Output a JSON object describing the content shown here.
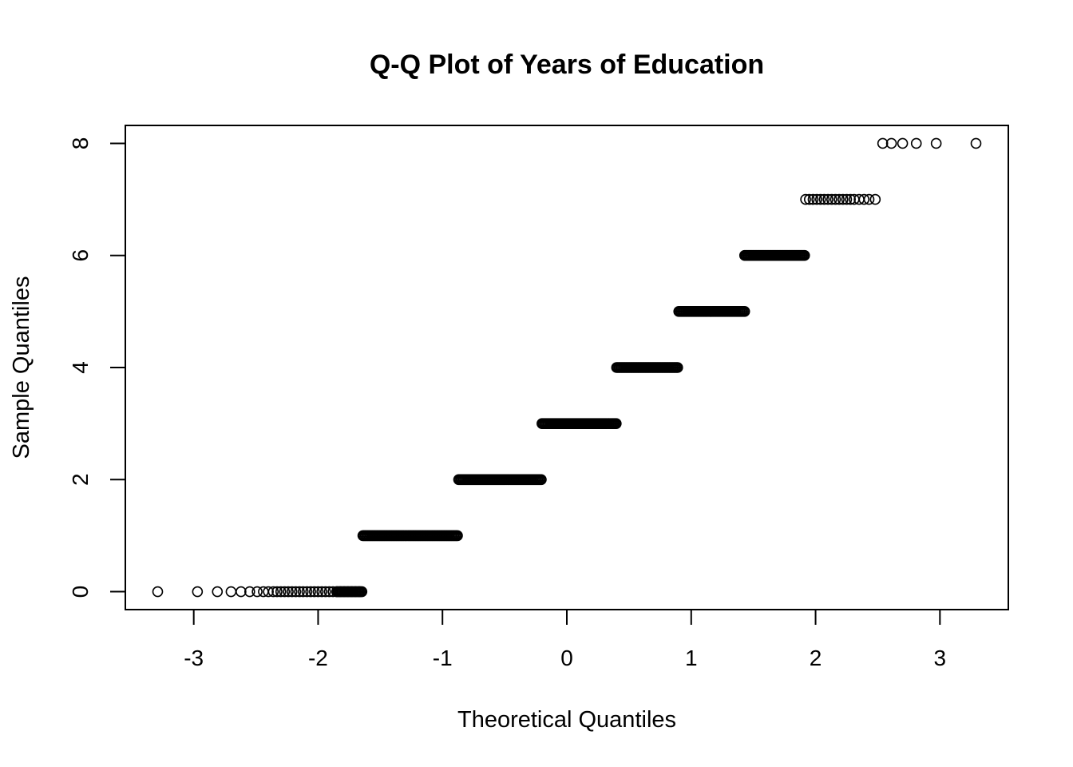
{
  "chart_data": {
    "type": "scatter",
    "title": "Q-Q Plot of Years of Education",
    "xlabel": "Theoretical Quantiles",
    "ylabel": "Sample Quantiles",
    "xlim": [
      -3.55,
      3.55
    ],
    "ylim": [
      -0.32,
      8.32
    ],
    "x_ticks": [
      -3,
      -2,
      -1,
      0,
      1,
      2,
      3
    ],
    "y_ticks": [
      0,
      2,
      4,
      6,
      8
    ],
    "grid": false,
    "legend": "none",
    "marker": "open-circle",
    "point_color": "#000000",
    "groups": [
      {
        "y": 0,
        "sparse_x": [
          -3.29,
          -2.97,
          -2.81,
          -2.7,
          -2.62,
          -2.55,
          -2.49,
          -2.44,
          -2.4,
          -2.36,
          -2.33,
          -2.3,
          -2.27,
          -2.24,
          -2.21,
          -2.18,
          -2.15,
          -2.12,
          -2.09,
          -2.06,
          -2.03,
          -2.0,
          -1.97,
          -1.94,
          -1.91,
          -1.88,
          -1.85,
          -1.82,
          -1.79,
          -1.76,
          -1.73,
          -1.7,
          -1.67
        ],
        "dense_range": [
          -1.85,
          -1.64
        ]
      },
      {
        "y": 1,
        "sparse_x": [],
        "dense_range": [
          -1.64,
          -0.87
        ]
      },
      {
        "y": 2,
        "sparse_x": [],
        "dense_range": [
          -0.87,
          -0.2
        ]
      },
      {
        "y": 3,
        "sparse_x": [],
        "dense_range": [
          -0.2,
          0.4
        ]
      },
      {
        "y": 4,
        "sparse_x": [],
        "dense_range": [
          0.4,
          0.9
        ]
      },
      {
        "y": 5,
        "sparse_x": [],
        "dense_range": [
          0.9,
          1.43
        ]
      },
      {
        "y": 6,
        "sparse_x": [],
        "dense_range": [
          1.43,
          1.92
        ]
      },
      {
        "y": 7,
        "sparse_x": [
          1.92,
          1.95,
          1.98,
          2.01,
          2.04,
          2.07,
          2.1,
          2.13,
          2.16,
          2.19,
          2.22,
          2.25,
          2.28,
          2.31,
          2.35,
          2.39,
          2.43,
          2.48
        ],
        "dense_range": null
      },
      {
        "y": 8,
        "sparse_x": [
          2.54,
          2.61,
          2.7,
          2.81,
          2.97,
          3.29
        ],
        "dense_range": null
      }
    ]
  }
}
